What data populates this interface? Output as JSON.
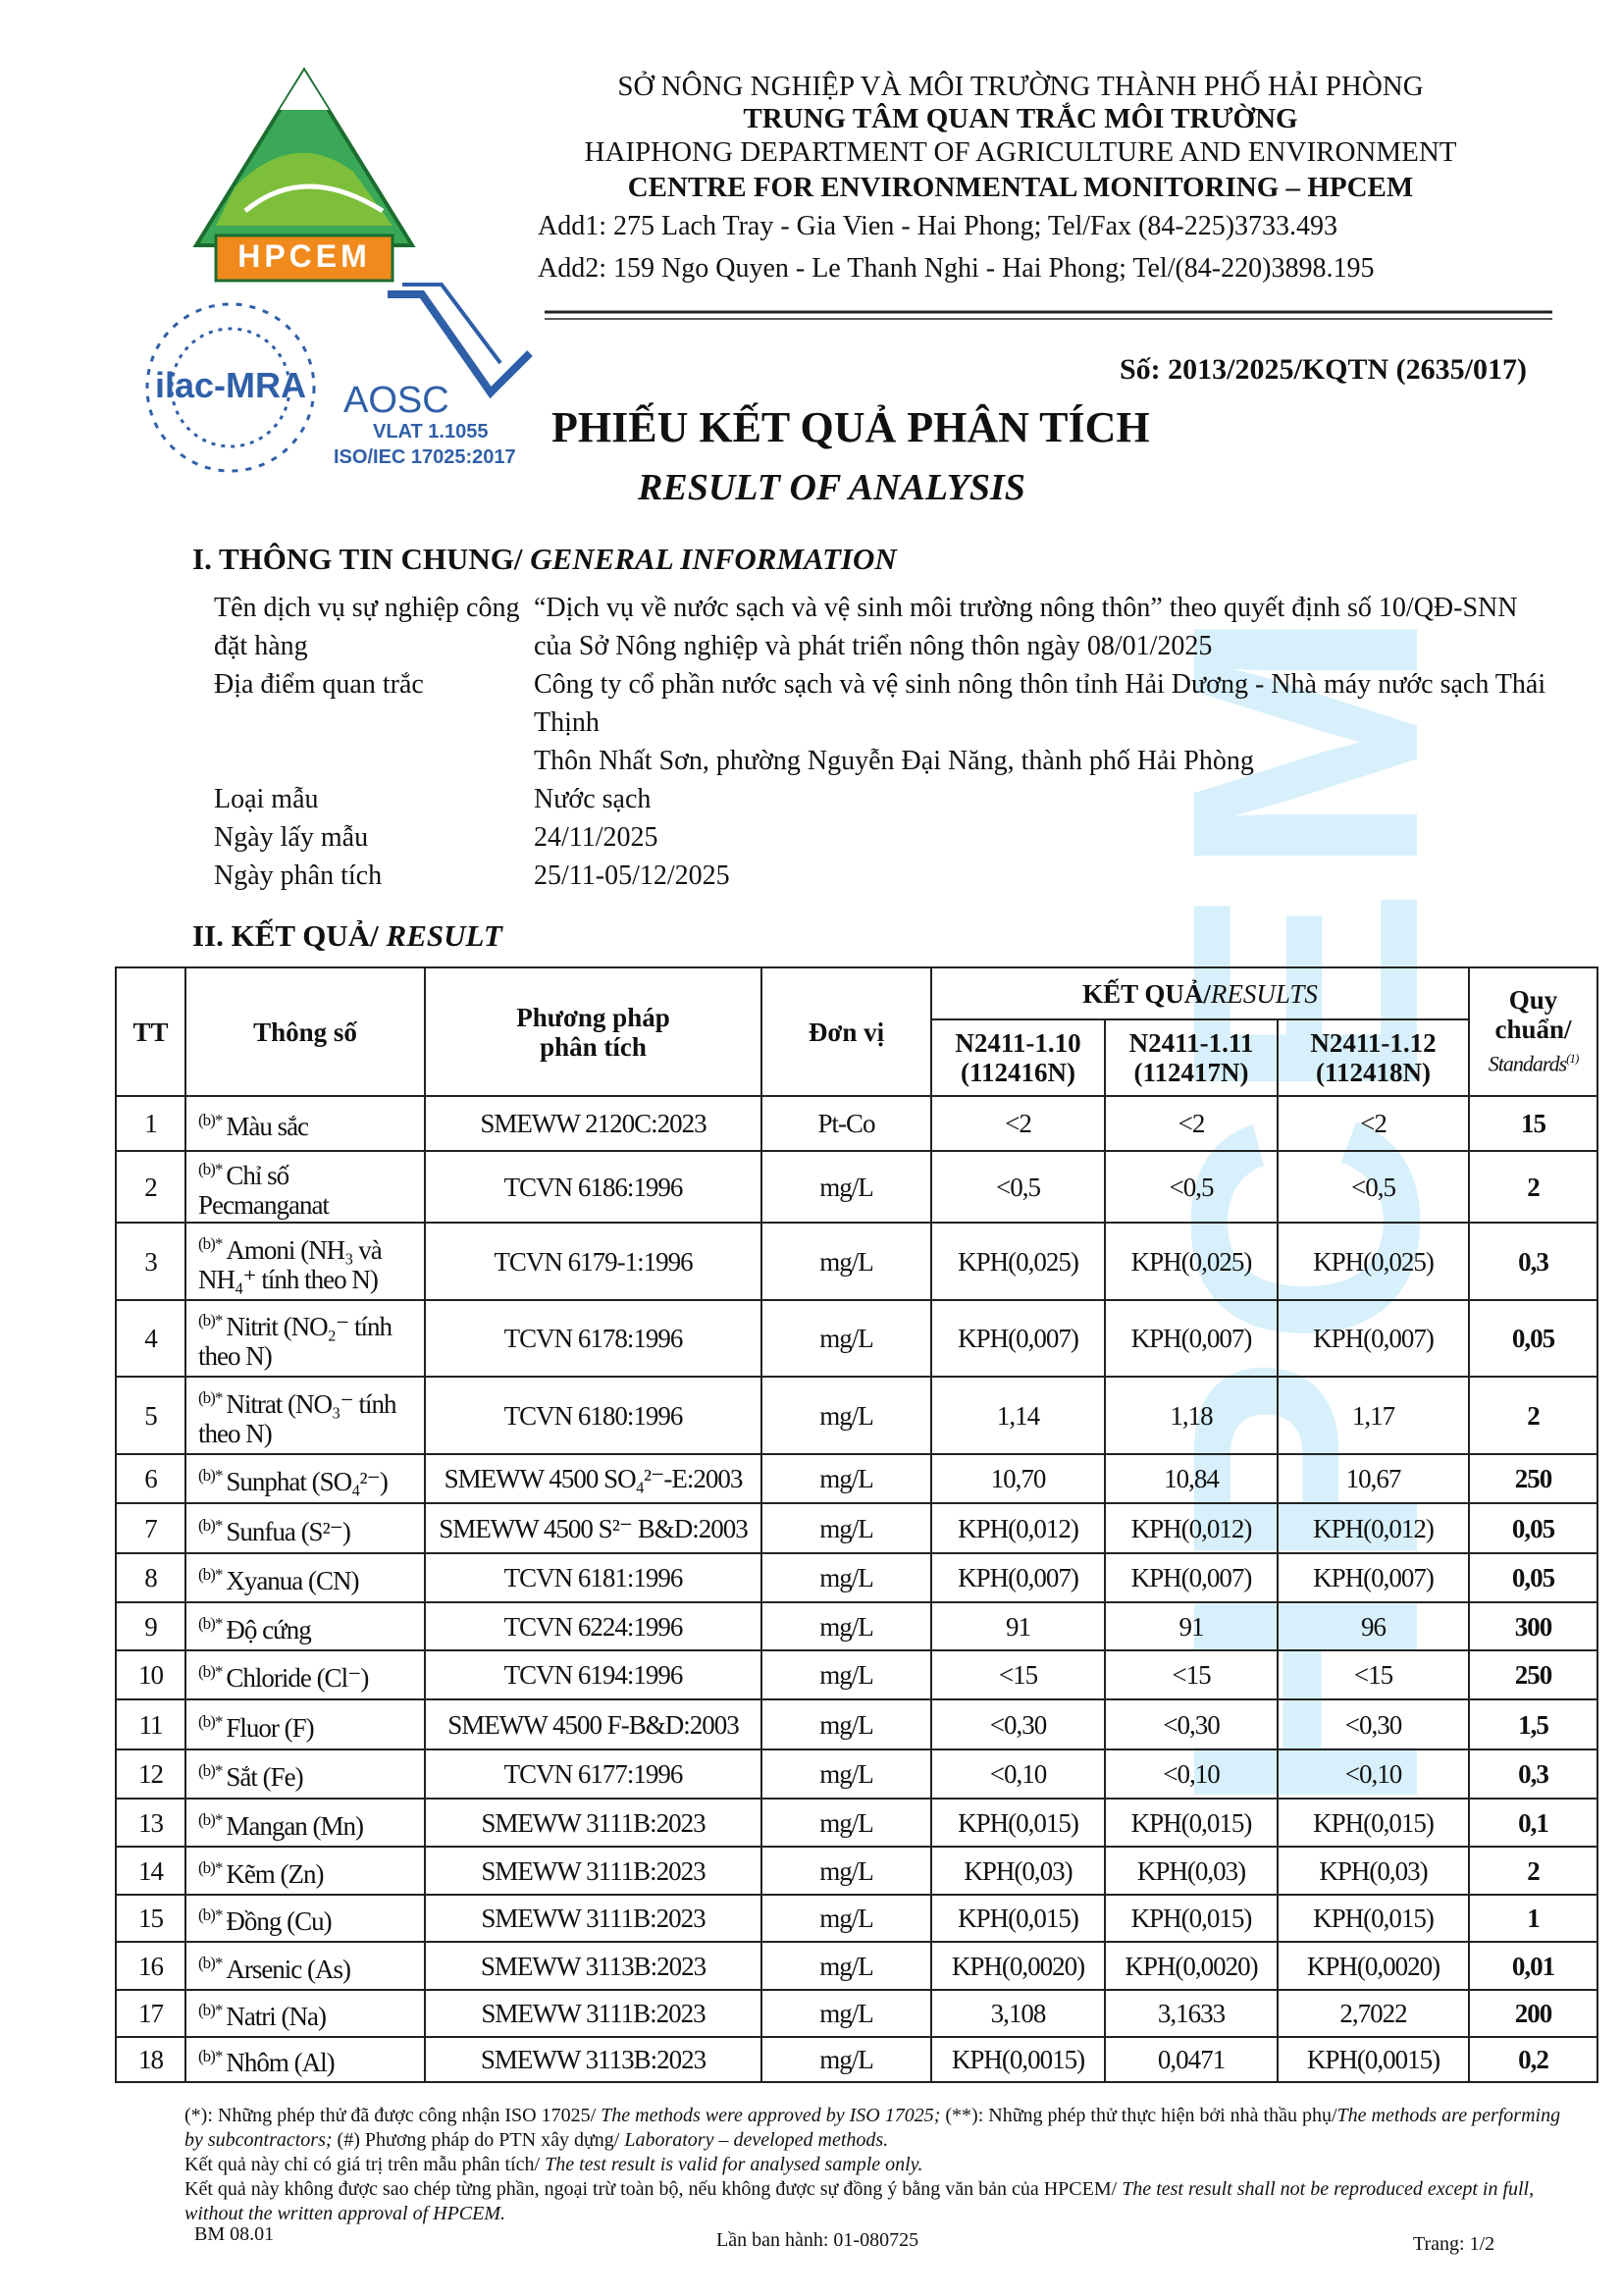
{
  "header": {
    "lines": [
      "SỞ NÔNG NGHIỆP VÀ MÔI TRƯỜNG THÀNH PHỐ HẢI PHÒNG",
      "TRUNG TÂM QUAN TRẮC MÔI TRƯỜNG",
      "HAIPHONG DEPARTMENT OF AGRICULTURE AND ENVIRONMENT",
      "CENTRE FOR ENVIRONMENTAL MONITORING – HPCEM"
    ],
    "add1": "Add1: 275 Lach Tray - Gia Vien - Hai Phong; Tel/Fax (84-225)3733.493",
    "add2": "Add2: 159 Ngo Quyen - Le Thanh Nghi - Hai Phong; Tel/(84-220)3898.195"
  },
  "logos": {
    "hpcem": "HPCEM",
    "ilac": "ilac-MRA",
    "aosc": "AOSC",
    "vlat": "VLAT 1.1055",
    "iso": "ISO/IEC 17025:2017"
  },
  "watermark": "HPCEM",
  "doc_number": "Số: 2013/2025/KQTN (2635/017)",
  "title": "PHIẾU KẾT QUẢ PHÂN TÍCH",
  "subtitle": "RESULT OF ANALYSIS",
  "section1": {
    "vi": "I. THÔNG TIN CHUNG/ ",
    "en": "GENERAL INFORMATION"
  },
  "info": [
    {
      "label": "Tên dịch vụ sự nghiệp công đặt hàng",
      "values": [
        "“Dịch vụ về nước sạch và vệ sinh môi trường nông thôn” theo quyết định số 10/QĐ-SNN của Sở Nông nghiệp và phát triển nông thôn ngày 08/01/2025"
      ]
    },
    {
      "label": "Địa điểm quan trắc",
      "values": [
        "Công ty cổ phần nước sạch và vệ sinh nông thôn tỉnh Hải Dương - Nhà máy nước sạch Thái Thịnh",
        "Thôn Nhất Sơn, phường Nguyễn Đại Năng, thành phố Hải Phòng"
      ]
    },
    {
      "label": "Loại mẫu",
      "values": [
        "Nước sạch"
      ]
    },
    {
      "label": "Ngày lấy mẫu",
      "values": [
        "24/11/2025"
      ]
    },
    {
      "label": "Ngày phân tích",
      "values": [
        "25/11-05/12/2025"
      ]
    }
  ],
  "section2": {
    "vi": "II. KẾT QUẢ/ ",
    "en": "RESULT"
  },
  "table": {
    "header": {
      "tt": "TT",
      "param": "Thông số",
      "method": "Phương pháp phân tích",
      "unit": "Đơn vị",
      "results_vi": "KẾT QUẢ/",
      "results_en": "RESULTS",
      "samples": [
        [
          "N2411-1.10",
          "(112416N)"
        ],
        [
          "N2411-1.11",
          "(112417N)"
        ],
        [
          "N2411-1.12",
          "(112418N)"
        ]
      ],
      "std_vi": "Quy chuẩn/",
      "std_en": "Standards",
      "std_note": "(1)"
    },
    "rows": [
      [
        "1",
        "(b)*",
        "Màu sắc",
        "SMEWW 2120C:2023",
        "Pt-Co",
        "<2",
        "<2",
        "<2",
        "15"
      ],
      [
        "2",
        "(b)*",
        "Chỉ số Pecmanganat",
        "TCVN 6186:1996",
        "mg/L",
        "<0,5",
        "<0,5",
        "<0,5",
        "2"
      ],
      [
        "3",
        "(b)*",
        "Amoni (NH₃ và NH₄⁺ tính theo N)",
        "TCVN 6179-1:1996",
        "mg/L",
        "KPH(0,025)",
        "KPH(0,025)",
        "KPH(0,025)",
        "0,3"
      ],
      [
        "4",
        "(b)*",
        "Nitrit (NO₂⁻ tính theo N)",
        "TCVN 6178:1996",
        "mg/L",
        "KPH(0,007)",
        "KPH(0,007)",
        "KPH(0,007)",
        "0,05"
      ],
      [
        "5",
        "(b)*",
        "Nitrat (NO₃⁻ tính theo N)",
        "TCVN 6180:1996",
        "mg/L",
        "1,14",
        "1,18",
        "1,17",
        "2"
      ],
      [
        "6",
        "(b)*",
        "Sunphat (SO₄²⁻)",
        "SMEWW 4500 SO₄²⁻-E:2003",
        "mg/L",
        "10,70",
        "10,84",
        "10,67",
        "250"
      ],
      [
        "7",
        "(b)*",
        "Sunfua (S²⁻)",
        "SMEWW 4500 S²⁻ B&D:2003",
        "mg/L",
        "KPH(0,012)",
        "KPH(0,012)",
        "KPH(0,012)",
        "0,05"
      ],
      [
        "8",
        "(b)*",
        "Xyanua (CN)",
        "TCVN 6181:1996",
        "mg/L",
        "KPH(0,007)",
        "KPH(0,007)",
        "KPH(0,007)",
        "0,05"
      ],
      [
        "9",
        "(b)*",
        "Độ cứng",
        "TCVN 6224:1996",
        "mg/L",
        "91",
        "91",
        "96",
        "300"
      ],
      [
        "10",
        "(b)*",
        "Chloride (Cl⁻)",
        "TCVN 6194:1996",
        "mg/L",
        "<15",
        "<15",
        "<15",
        "250"
      ],
      [
        "11",
        "(b)*",
        "Fluor (F)",
        "SMEWW 4500 F-B&D:2003",
        "mg/L",
        "<0,30",
        "<0,30",
        "<0,30",
        "1,5"
      ],
      [
        "12",
        "(b)*",
        "Sắt (Fe)",
        "TCVN 6177:1996",
        "mg/L",
        "<0,10",
        "<0,10",
        "<0,10",
        "0,3"
      ],
      [
        "13",
        "(b)*",
        "Mangan (Mn)",
        "SMEWW 3111B:2023",
        "mg/L",
        "KPH(0,015)",
        "KPH(0,015)",
        "KPH(0,015)",
        "0,1"
      ],
      [
        "14",
        "(b)*",
        "Kẽm (Zn)",
        "SMEWW 3111B:2023",
        "mg/L",
        "KPH(0,03)",
        "KPH(0,03)",
        "KPH(0,03)",
        "2"
      ],
      [
        "15",
        "(b)*",
        "Đồng (Cu)",
        "SMEWW 3111B:2023",
        "mg/L",
        "KPH(0,015)",
        "KPH(0,015)",
        "KPH(0,015)",
        "1"
      ],
      [
        "16",
        "(b)*",
        "Arsenic (As)",
        "SMEWW 3113B:2023",
        "mg/L",
        "KPH(0,0020)",
        "KPH(0,0020)",
        "KPH(0,0020)",
        "0,01"
      ],
      [
        "17",
        "(b)*",
        "Natri (Na)",
        "SMEWW 3111B:2023",
        "mg/L",
        "3,108",
        "3,1633",
        "2,7022",
        "200"
      ],
      [
        "18",
        "(b)*",
        "Nhôm (Al)",
        "SMEWW 3113B:2023",
        "mg/L",
        "KPH(0,0015)",
        "0,0471",
        "KPH(0,0015)",
        "0,2"
      ]
    ]
  },
  "footnotes": [
    [
      "(*): Những phép thử đã được công nhận ISO 17025/ ",
      "The methods were approved by ISO 17025;",
      " (**): Những phép thử thực hiện bởi nhà thầu phụ/",
      "The methods are performing by subcontractors;",
      " (#) Phương pháp do PTN xây dựng/ ",
      "Laboratory – developed methods."
    ],
    [
      "Kết quả này chỉ có giá trị trên mẫu phân tích/ ",
      "The test result is valid for analysed sample only."
    ],
    [
      "Kết quả này không được sao chép từng phần, ngoại trừ toàn bộ, nếu không được sự đồng ý bằng văn bản của HPCEM/ ",
      "The test result shall not be reproduced except in full, without the written approval of HPCEM."
    ]
  ],
  "footer": {
    "form": "BM 08.01",
    "issue": "Lần ban hành: 01-080725",
    "page": "Trang: 1/2"
  }
}
